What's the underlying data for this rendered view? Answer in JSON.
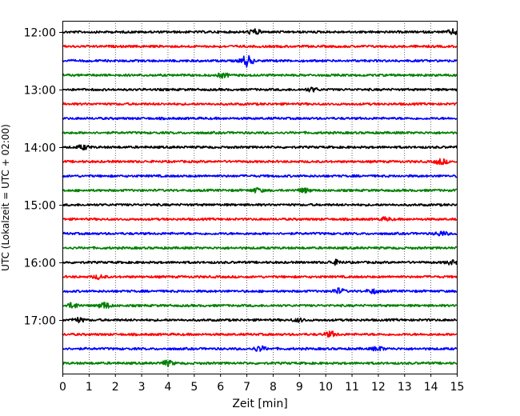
{
  "chart_data": {
    "type": "line",
    "title": "",
    "xlabel": "Zeit  [min]",
    "ylabel": "UTC (Lokalzeit = UTC + 02:00)",
    "xlim": [
      0,
      15
    ],
    "x_ticks": [
      "0",
      "1",
      "2",
      "3",
      "4",
      "5",
      "6",
      "7",
      "8",
      "9",
      "10",
      "11",
      "12",
      "13",
      "14",
      "15"
    ],
    "y_ticks": [
      "12:00",
      "13:00",
      "14:00",
      "15:00",
      "16:00",
      "17:00"
    ],
    "grid": "vertical dotted",
    "legend": "none",
    "trace_interval_min": 15,
    "trace_colors": [
      "#000000",
      "#ff0000",
      "#0000ff",
      "#008000"
    ],
    "traces": [
      {
        "start": "12:00",
        "color": "#000000",
        "bursts": [
          {
            "x": 7.3,
            "amp": 1.0
          },
          {
            "x": 14.9,
            "amp": 1.0
          }
        ]
      },
      {
        "start": "12:15",
        "color": "#ff0000",
        "bursts": []
      },
      {
        "start": "12:30",
        "color": "#0000ff",
        "bursts": [
          {
            "x": 7.0,
            "amp": 2.2
          }
        ]
      },
      {
        "start": "12:45",
        "color": "#008000",
        "bursts": [
          {
            "x": 6.1,
            "amp": 0.8
          }
        ]
      },
      {
        "start": "13:00",
        "color": "#000000",
        "bursts": [
          {
            "x": 9.5,
            "amp": 0.7
          }
        ]
      },
      {
        "start": "13:15",
        "color": "#ff0000",
        "bursts": []
      },
      {
        "start": "13:30",
        "color": "#0000ff",
        "bursts": []
      },
      {
        "start": "13:45",
        "color": "#008000",
        "bursts": []
      },
      {
        "start": "14:00",
        "color": "#000000",
        "bursts": [
          {
            "x": 0.8,
            "amp": 0.8
          }
        ]
      },
      {
        "start": "14:15",
        "color": "#ff0000",
        "bursts": [
          {
            "x": 14.4,
            "amp": 1.0
          }
        ]
      },
      {
        "start": "14:30",
        "color": "#0000ff",
        "bursts": []
      },
      {
        "start": "14:45",
        "color": "#008000",
        "bursts": [
          {
            "x": 7.4,
            "amp": 0.8
          },
          {
            "x": 9.2,
            "amp": 0.8
          }
        ]
      },
      {
        "start": "15:00",
        "color": "#000000",
        "bursts": []
      },
      {
        "start": "15:15",
        "color": "#ff0000",
        "bursts": [
          {
            "x": 12.3,
            "amp": 0.6
          }
        ]
      },
      {
        "start": "15:30",
        "color": "#0000ff",
        "bursts": [
          {
            "x": 14.4,
            "amp": 0.8
          }
        ]
      },
      {
        "start": "15:45",
        "color": "#008000",
        "bursts": []
      },
      {
        "start": "16:00",
        "color": "#000000",
        "bursts": [
          {
            "x": 10.4,
            "amp": 0.8
          },
          {
            "x": 14.8,
            "amp": 0.7
          }
        ]
      },
      {
        "start": "16:15",
        "color": "#ff0000",
        "bursts": [
          {
            "x": 1.4,
            "amp": 0.7
          }
        ]
      },
      {
        "start": "16:30",
        "color": "#0000ff",
        "bursts": [
          {
            "x": 10.5,
            "amp": 1.0
          },
          {
            "x": 11.8,
            "amp": 0.8
          }
        ]
      },
      {
        "start": "16:45",
        "color": "#008000",
        "bursts": [
          {
            "x": 1.6,
            "amp": 1.2
          },
          {
            "x": 0.4,
            "amp": 1.0
          }
        ]
      },
      {
        "start": "17:00",
        "color": "#000000",
        "bursts": [
          {
            "x": 0.6,
            "amp": 0.8
          },
          {
            "x": 9.0,
            "amp": 0.6
          }
        ]
      },
      {
        "start": "17:15",
        "color": "#ff0000",
        "bursts": [
          {
            "x": 10.2,
            "amp": 1.0
          }
        ]
      },
      {
        "start": "17:30",
        "color": "#0000ff",
        "bursts": [
          {
            "x": 7.5,
            "amp": 1.0
          },
          {
            "x": 12.0,
            "amp": 0.8
          }
        ]
      },
      {
        "start": "17:45",
        "color": "#008000",
        "bursts": [
          {
            "x": 4.0,
            "amp": 1.0
          }
        ]
      }
    ]
  }
}
